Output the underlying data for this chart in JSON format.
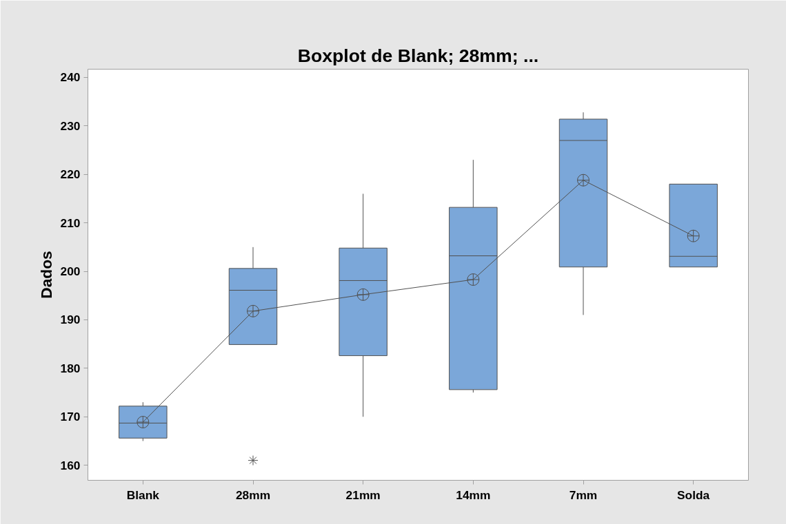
{
  "chart_data": {
    "type": "box",
    "title": "Boxplot de Blank; 28mm; ...",
    "ylabel": "Dados",
    "categories": [
      "Blank",
      "28mm",
      "21mm",
      "14mm",
      "7mm",
      "Solda"
    ],
    "color": "#7ba7d9",
    "boxes": [
      {
        "low": 165,
        "q1": 165.6,
        "median": 168.7,
        "q3": 172.2,
        "high": 173,
        "mean": 168.9
      },
      {
        "low": 184.9,
        "q1": 184.9,
        "median": 196.1,
        "q3": 200.6,
        "high": 205,
        "mean": 191.8,
        "outliers": [
          161
        ]
      },
      {
        "low": 170,
        "q1": 182.6,
        "median": 198.1,
        "q3": 204.8,
        "high": 216,
        "mean": 195.2
      },
      {
        "low": 175,
        "q1": 175.6,
        "median": 203.2,
        "q3": 213.2,
        "high": 223,
        "mean": 198.3
      },
      {
        "low": 191,
        "q1": 200.9,
        "median": 227,
        "q3": 231.4,
        "high": 232.8,
        "mean": 218.8
      },
      {
        "low": 200.9,
        "q1": 200.9,
        "median": 203.1,
        "q3": 218,
        "high": 218,
        "mean": 207.3
      }
    ],
    "series": [
      {
        "type": "line",
        "color": "#505050",
        "values": [
          168.9,
          191.8,
          195.2,
          198.3,
          218.8,
          207.3
        ]
      }
    ],
    "ylim": [
      156.9,
      241.7
    ],
    "yticks": [
      160,
      170,
      180,
      190,
      200,
      210,
      220,
      230,
      240
    ],
    "grid": false
  }
}
